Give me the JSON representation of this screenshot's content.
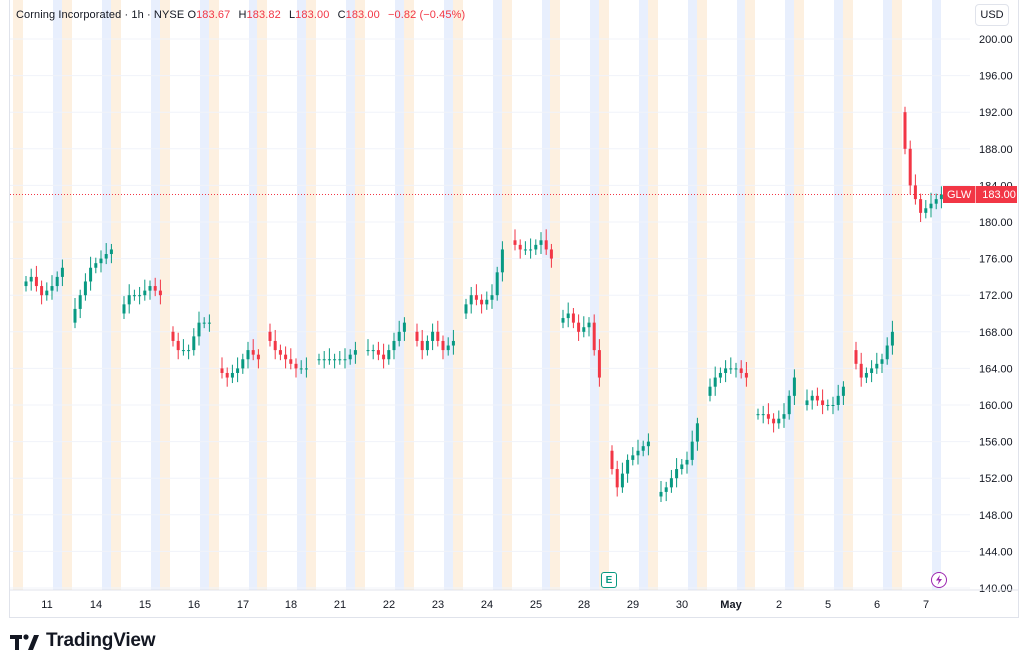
{
  "legend": {
    "title": "Corning Incorporated · 1h · NYSE",
    "open_label": "O",
    "open": "183.67",
    "high_label": "H",
    "high": "183.82",
    "low_label": "L",
    "low": "183.00",
    "close_label": "C",
    "close": "183.00",
    "change": "−0.82 (−0.45%)"
  },
  "currency": "USD",
  "price_tag": {
    "symbol": "GLW",
    "price": "183.00"
  },
  "events": {
    "earnings_label": "E",
    "split_icon": "lightning-bolt-icon"
  },
  "brand": {
    "name": "TradingView",
    "logo_icon": "tradingview-logo-icon"
  },
  "colors": {
    "up": "#089981",
    "down": "#f23645",
    "premarket": "#fdf0e0",
    "postmarket": "#e8effd"
  },
  "chart_data": {
    "type": "candlestick",
    "ylim": [
      140,
      200
    ],
    "y_ticks": [
      "200.00",
      "196.00",
      "192.00",
      "188.00",
      "184.00",
      "180.00",
      "176.00",
      "172.00",
      "168.00",
      "164.00",
      "160.00",
      "156.00",
      "152.00",
      "148.00",
      "144.00",
      "140.00"
    ],
    "x_ticks": [
      "11",
      "14",
      "15",
      "16",
      "17",
      "18",
      "21",
      "22",
      "23",
      "24",
      "25",
      "28",
      "29",
      "30",
      "May",
      "2",
      "5",
      "6",
      "7"
    ],
    "last_price": 183.0,
    "days": [
      {
        "label": "11",
        "pts": [
          173,
          174,
          172,
          173,
          175
        ]
      },
      {
        "label": "14",
        "pts": [
          169,
          172,
          175,
          176,
          177
        ]
      },
      {
        "label": "15",
        "pts": [
          170,
          172,
          172,
          173,
          172
        ]
      },
      {
        "label": "16",
        "pts": [
          168,
          166,
          166,
          169,
          169
        ]
      },
      {
        "label": "17",
        "pts": [
          164,
          163,
          164,
          166,
          165
        ]
      },
      {
        "label": "18",
        "pts": [
          168,
          166,
          165,
          164,
          164
        ]
      },
      {
        "label": "21",
        "pts": [
          165,
          165,
          165,
          165,
          166
        ]
      },
      {
        "label": "22",
        "pts": [
          166,
          166,
          165,
          167,
          169
        ]
      },
      {
        "label": "23",
        "pts": [
          168,
          166,
          168,
          166,
          167
        ]
      },
      {
        "label": "24",
        "pts": [
          170,
          172,
          171,
          172,
          177
        ]
      },
      {
        "label": "25",
        "pts": [
          178,
          177,
          177,
          178,
          176
        ]
      },
      {
        "label": "28",
        "pts": [
          169,
          170,
          168,
          169,
          163
        ]
      },
      {
        "label": "29",
        "pts": [
          155,
          151,
          154,
          155,
          156
        ]
      },
      {
        "label": "30",
        "pts": [
          150,
          151,
          153,
          154,
          158
        ]
      },
      {
        "label": "May",
        "pts": [
          161,
          163,
          164,
          164,
          163
        ]
      },
      {
        "label": "2",
        "pts": [
          159,
          159,
          158,
          159,
          163
        ]
      },
      {
        "label": "5",
        "pts": [
          160,
          161,
          160,
          160,
          162
        ]
      },
      {
        "label": "6",
        "pts": [
          166,
          163,
          164,
          165,
          168
        ]
      },
      {
        "label": "7",
        "pts": [
          192,
          184,
          181,
          182,
          183
        ]
      }
    ]
  }
}
